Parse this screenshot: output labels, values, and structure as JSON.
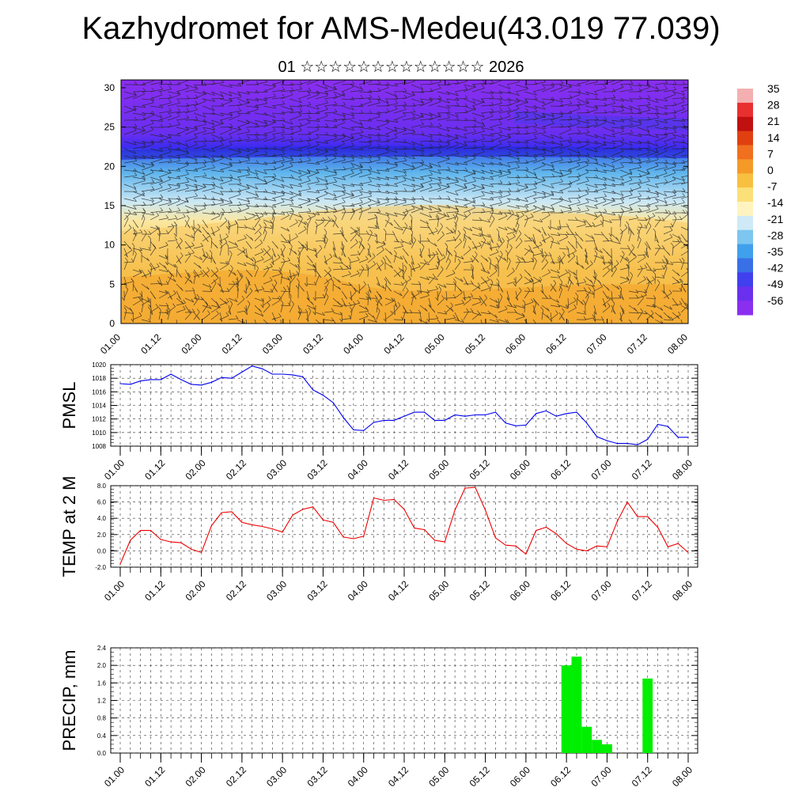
{
  "header": {
    "title": "Kazhydromet for AMS-Medeu(43.019 77.039)",
    "subtitle": "01 ☆☆☆☆☆☆☆☆☆☆☆☆☆ 2026"
  },
  "time_ticks": [
    "01.00",
    "01.12",
    "02.00",
    "02.12",
    "03.00",
    "03.12",
    "04.00",
    "04.12",
    "05.00",
    "05.12",
    "06.00",
    "06.12",
    "07.00",
    "07.12",
    "08.00"
  ],
  "chart_data": [
    {
      "type": "heatmap",
      "name": "cross-section",
      "x_ticks": [
        "01.00",
        "01.12",
        "02.00",
        "02.12",
        "03.00",
        "03.12",
        "04.00",
        "04.12",
        "05.00",
        "05.12",
        "06.00",
        "06.12",
        "07.00",
        "07.12",
        "08.00"
      ],
      "y_ticks": [
        "0",
        "5",
        "10",
        "15",
        "20",
        "25",
        "30"
      ],
      "ylim": [
        0,
        31
      ],
      "colorbar_labels": [
        "35",
        "28",
        "21",
        "14",
        "7",
        "0",
        "-7",
        "-14",
        "-21",
        "-28",
        "-35",
        "-42",
        "-49",
        "-56"
      ],
      "colors": {
        "warm": "#f4a020",
        "mild": "#f8d050",
        "cool": "#fff4b0",
        "cold": "#9dd6f0",
        "freeze": "#3a8ee8",
        "frigid": "#4a3cf0",
        "stratosphere": "#8a2ef0"
      }
    },
    {
      "type": "line",
      "name": "PMSL",
      "ylabel": "PMSL",
      "ylim": [
        1008,
        1020
      ],
      "y_ticks": [
        "1008",
        "1010",
        "1012",
        "1014",
        "1016",
        "1018",
        "1020"
      ],
      "color": "#0000ee",
      "values": [
        1017.2,
        1017.1,
        1017.6,
        1017.8,
        1017.8,
        1018.6,
        1017.8,
        1017.1,
        1017.0,
        1017.4,
        1018.1,
        1018.0,
        1018.9,
        1019.8,
        1019.4,
        1018.6,
        1018.6,
        1018.5,
        1018.2,
        1016.3,
        1015.5,
        1014.4,
        1012.2,
        1010.4,
        1010.3,
        1011.5,
        1011.8,
        1011.8,
        1012.4,
        1013.0,
        1013.0,
        1011.8,
        1011.8,
        1012.6,
        1012.4,
        1012.6,
        1012.6,
        1013.0,
        1011.4,
        1011.0,
        1011.1,
        1012.8,
        1013.2,
        1012.4,
        1012.8,
        1013.0,
        1011.4,
        1009.4,
        1008.8,
        1008.4,
        1008.4,
        1008.2,
        1009.0,
        1011.2,
        1010.9,
        1009.3,
        1009.3
      ]
    },
    {
      "type": "line",
      "name": "TEMP at 2 M",
      "ylabel": "TEMP at 2 M",
      "ylim": [
        -2,
        8
      ],
      "y_ticks": [
        "-2.0",
        "0.0",
        "2.0",
        "4.0",
        "6.0",
        "8.0"
      ],
      "color": "#ee0000",
      "values": [
        -1.6,
        1.3,
        2.5,
        2.5,
        1.4,
        1.1,
        1.0,
        0.2,
        -0.2,
        3.1,
        4.7,
        4.8,
        3.5,
        3.2,
        3.0,
        2.7,
        2.3,
        4.4,
        5.1,
        5.4,
        3.8,
        3.5,
        1.7,
        1.5,
        1.8,
        6.5,
        6.2,
        6.3,
        5.1,
        2.8,
        2.6,
        1.3,
        1.1,
        5.0,
        7.7,
        7.8,
        5.0,
        1.6,
        0.7,
        0.6,
        -0.4,
        2.5,
        2.9,
        2.1,
        0.9,
        0.2,
        0.0,
        0.6,
        0.5,
        3.6,
        6.0,
        4.2,
        4.2,
        2.9,
        0.5,
        0.9,
        -0.2
      ]
    },
    {
      "type": "bar",
      "name": "PRECIP",
      "ylabel": "PRECIP, mm",
      "ylim": [
        0,
        2.4
      ],
      "y_ticks": [
        "0.0",
        "0.4",
        "0.8",
        "1.2",
        "1.6",
        "2.0",
        "2.4"
      ],
      "color": "#00ee00",
      "values": [
        0,
        0,
        0,
        0,
        0,
        0,
        0,
        0,
        0,
        0,
        0,
        0,
        0,
        0,
        0,
        0,
        0,
        0,
        0,
        0,
        0,
        0,
        0,
        0,
        0,
        0,
        0,
        0,
        0,
        0,
        0,
        0,
        0,
        0,
        0,
        0,
        0,
        0,
        0,
        0,
        0,
        0,
        0,
        0,
        2.0,
        2.2,
        0.6,
        0.3,
        0.2,
        0,
        0,
        0,
        1.7,
        0,
        0,
        0,
        0
      ]
    }
  ]
}
